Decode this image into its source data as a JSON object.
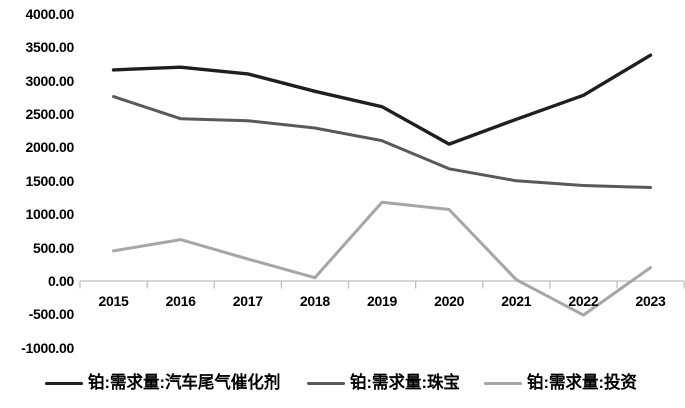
{
  "chart_data": {
    "type": "line",
    "title": "",
    "categories": [
      "2015",
      "2016",
      "2017",
      "2018",
      "2019",
      "2020",
      "2021",
      "2022",
      "2023"
    ],
    "series": [
      {
        "name": "铂:需求量:汽车尾气催化剂",
        "color": "#1f1f1f",
        "stroke_width": 3.4,
        "values": [
          3160,
          3200,
          3100,
          2840,
          2610,
          2050,
          2420,
          2780,
          3380
        ]
      },
      {
        "name": "铂:需求量:珠宝",
        "color": "#595959",
        "stroke_width": 3,
        "values": [
          2760,
          2430,
          2400,
          2290,
          2100,
          1680,
          1500,
          1430,
          1400
        ]
      },
      {
        "name": "铂:需求量:投资",
        "color": "#a6a6a6",
        "stroke_width": 3,
        "values": [
          450,
          620,
          330,
          50,
          1180,
          1070,
          20,
          -510,
          200
        ]
      }
    ],
    "xlabel": "",
    "ylabel": "",
    "ylim": [
      -1000,
      4000
    ],
    "ytick_step": 500,
    "ytick_labels": [
      "4000.00",
      "3500.00",
      "3000.00",
      "2500.00",
      "2000.00",
      "1500.00",
      "1000.00",
      "500.00",
      "0.00",
      "-500.00",
      "-1000.00"
    ],
    "grid": false,
    "legend_position": "bottom",
    "axis_color": "#bfbfbf",
    "text_color": "#000000",
    "background": "#ffffff"
  }
}
